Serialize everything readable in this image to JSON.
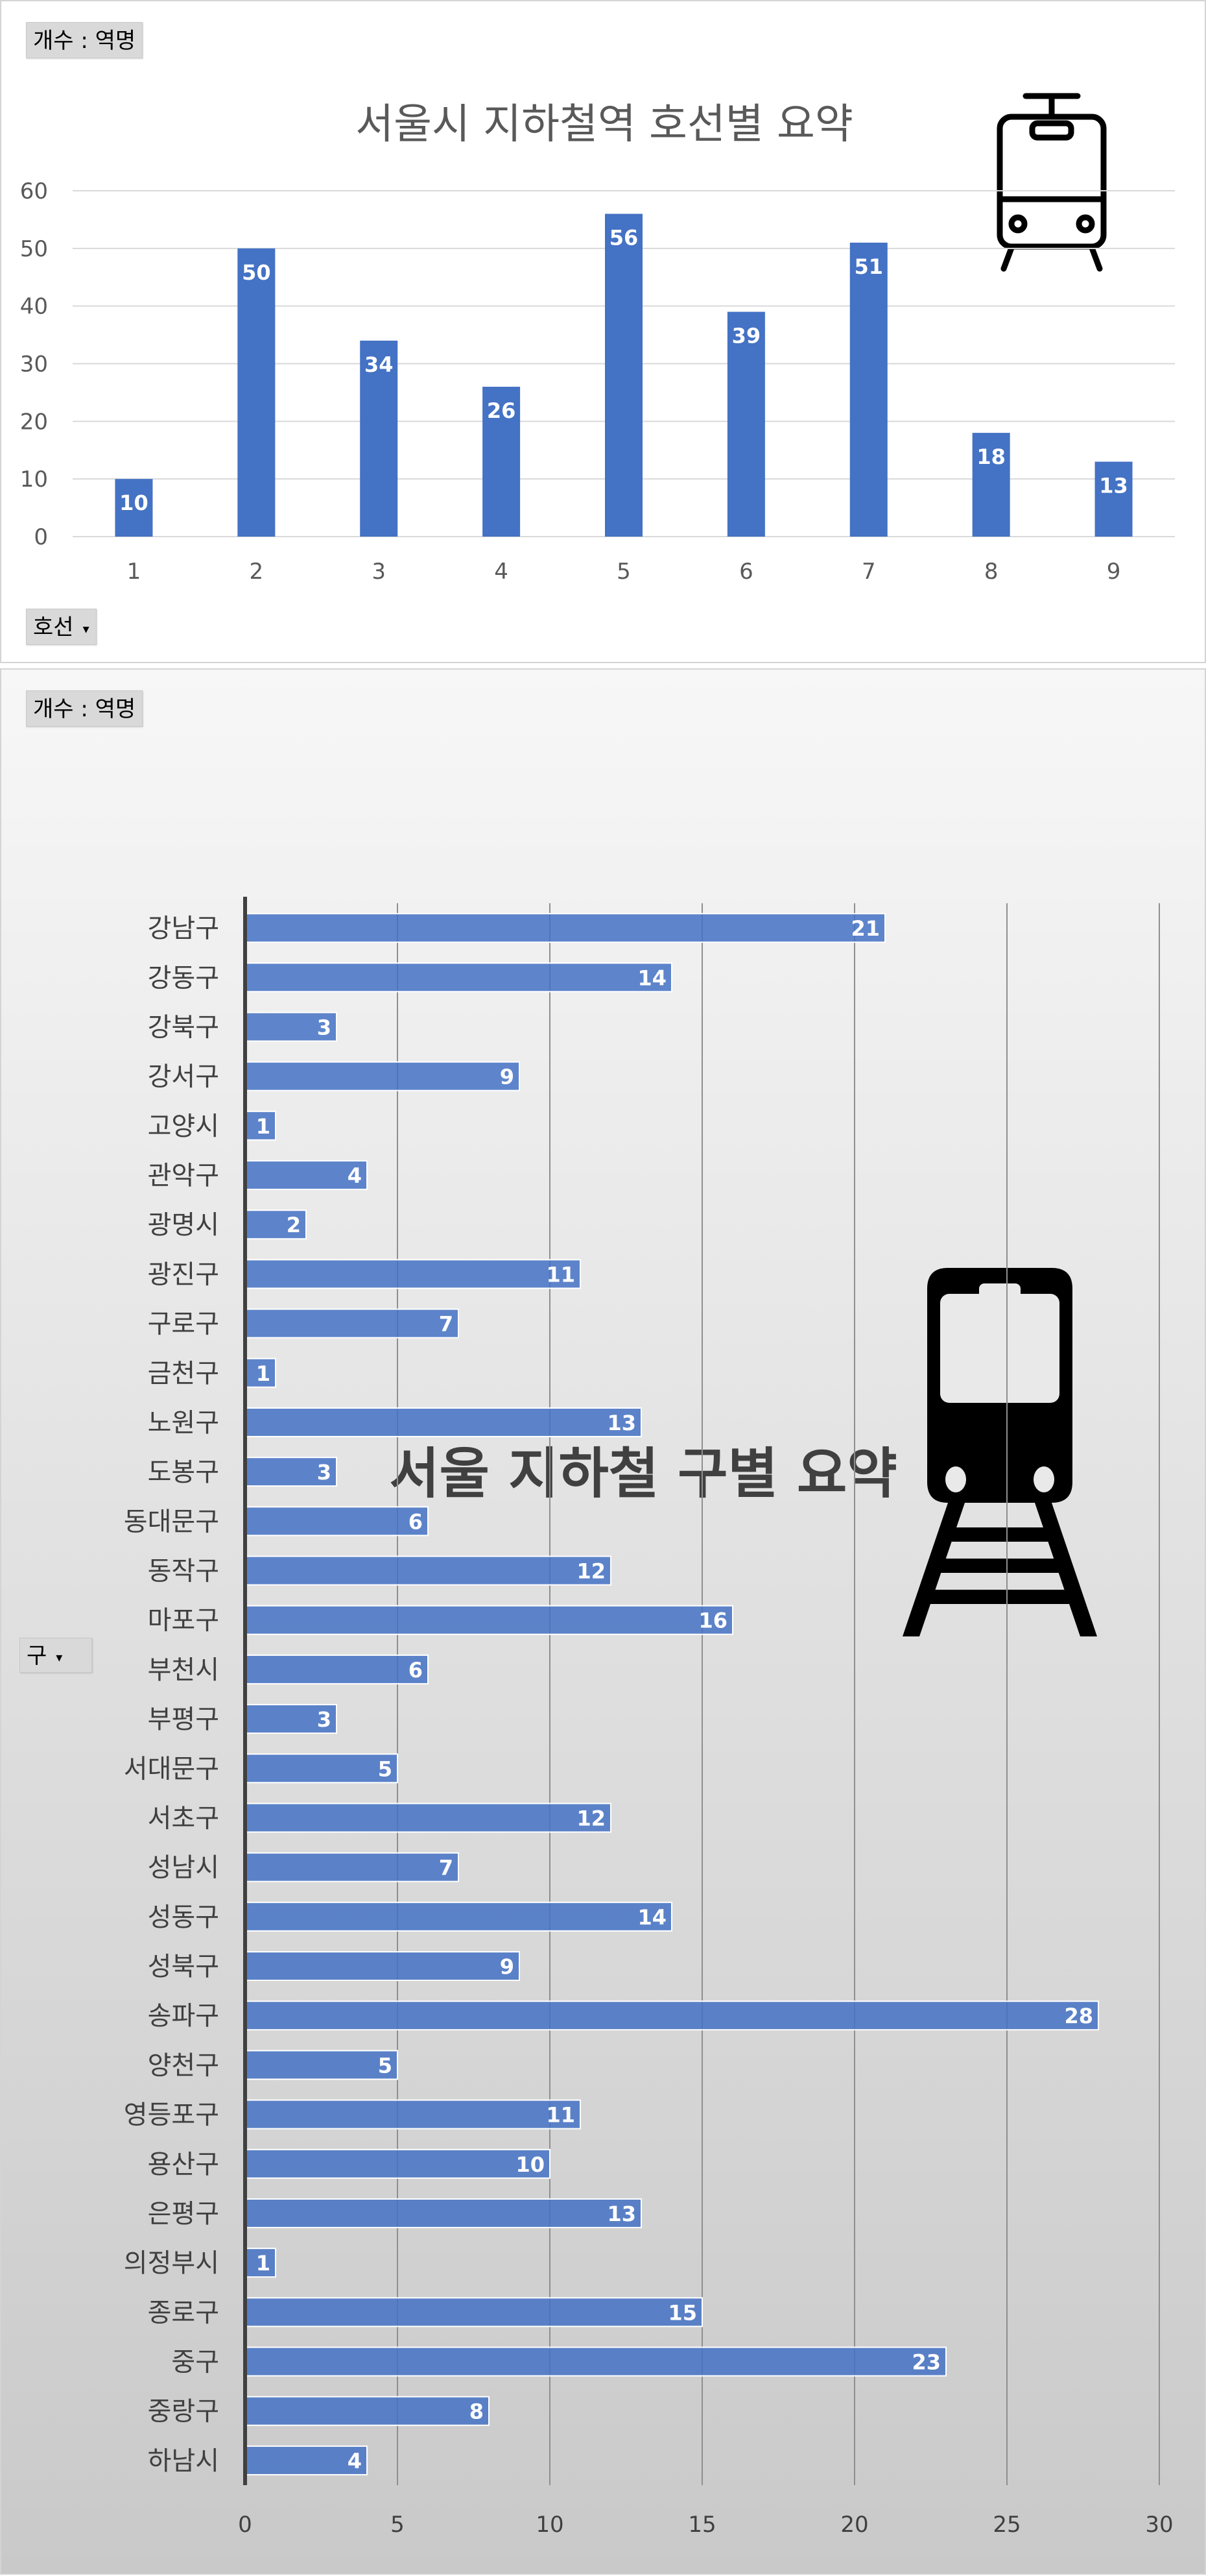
{
  "charts": [
    {
      "field_value": "개수 : 역명",
      "axis_field": "호선",
      "chart_data": {
        "type": "bar",
        "orientation": "vertical",
        "title": "서울시 지하철역 호선별 요약",
        "categories": [
          "1",
          "2",
          "3",
          "4",
          "5",
          "6",
          "7",
          "8",
          "9"
        ],
        "values": [
          10,
          50,
          34,
          26,
          56,
          39,
          51,
          18,
          13
        ],
        "ylim": [
          0,
          60
        ],
        "yticks": [
          0,
          10,
          20,
          30,
          40,
          50,
          60
        ],
        "grid": true,
        "legend": "none",
        "bar_color": "#4472c4"
      },
      "icon": "tram-outline-icon"
    },
    {
      "field_value": "개수 : 역명",
      "axis_field": "구",
      "chart_data": {
        "type": "bar",
        "orientation": "horizontal",
        "title": "서울 지하철 구별 요약",
        "categories": [
          "강남구",
          "강동구",
          "강북구",
          "강서구",
          "고양시",
          "관악구",
          "광명시",
          "광진구",
          "구로구",
          "금천구",
          "노원구",
          "도봉구",
          "동대문구",
          "동작구",
          "마포구",
          "부천시",
          "부평구",
          "서대문구",
          "서초구",
          "성남시",
          "성동구",
          "성북구",
          "송파구",
          "양천구",
          "영등포구",
          "용산구",
          "은평구",
          "의정부시",
          "종로구",
          "중구",
          "중랑구",
          "하남시"
        ],
        "values": [
          21,
          14,
          3,
          9,
          1,
          4,
          2,
          11,
          7,
          1,
          13,
          3,
          6,
          12,
          16,
          6,
          3,
          5,
          12,
          7,
          14,
          9,
          28,
          5,
          11,
          10,
          13,
          1,
          15,
          23,
          8,
          4
        ],
        "xlim": [
          0,
          30
        ],
        "xticks": [
          0,
          5,
          10,
          15,
          20,
          25,
          30
        ],
        "grid": true,
        "legend": "none",
        "bar_color": "#4472c4"
      },
      "icon": "train-on-tracks-icon"
    }
  ]
}
